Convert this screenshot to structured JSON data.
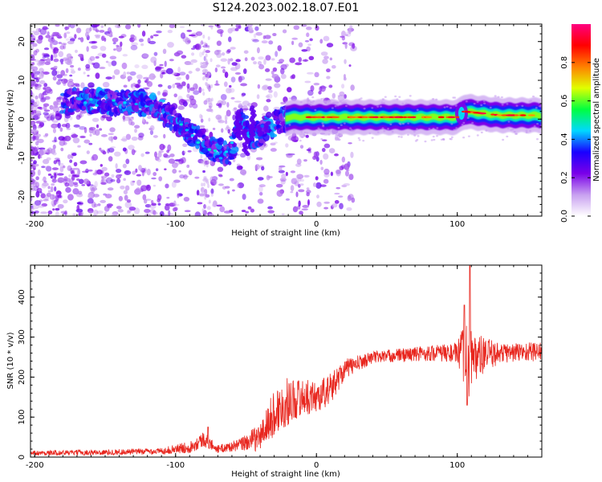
{
  "title": "S124.2023.002.18.07.E01",
  "chart_data": [
    {
      "type": "heatmap",
      "title": "S124.2023.002.18.07.E01",
      "xlabel": "Height of straight line (km)",
      "ylabel": "Frequency (Hz)",
      "xlim": [
        -203,
        160
      ],
      "ylim": [
        -25,
        24.5
      ],
      "x_ticks": [
        -200,
        -100,
        0,
        100
      ],
      "x_tick_labels": [
        "-200",
        "-100",
        "0",
        "100"
      ],
      "y_ticks": [
        -20,
        -10,
        0,
        10,
        20
      ],
      "y_tick_labels": [
        "-20",
        "-10",
        "0",
        "10",
        "20"
      ],
      "colorbar": {
        "label": "Normalized spectral amplitude",
        "range": [
          0,
          1
        ],
        "ticks": [
          0.0,
          0.2,
          0.4,
          0.6,
          0.8
        ],
        "tick_labels": [
          "0.0",
          "0.2",
          "0.4",
          "0.6",
          "0.8"
        ],
        "colormap": [
          "#ffffff",
          "#c8a0f0",
          "#7a00e8",
          "#1a00ff",
          "#00d8ff",
          "#00ff40",
          "#e0ff00",
          "#ff8000",
          "#ff0000",
          "#ff0080"
        ]
      },
      "ridge": [
        {
          "x": -175,
          "f": 4.5
        },
        {
          "x": -150,
          "f": 4.5
        },
        {
          "x": -125,
          "f": 4.5
        },
        {
          "x": -110,
          "f": 2
        },
        {
          "x": -100,
          "f": -1
        },
        {
          "x": -90,
          "f": -4
        },
        {
          "x": -75,
          "f": -7
        },
        {
          "x": -62,
          "f": -10
        },
        {
          "x": -55,
          "f": 0
        },
        {
          "x": -45,
          "f": -5
        },
        {
          "x": -35,
          "f": -2
        },
        {
          "x": -20,
          "f": 0.5
        },
        {
          "x": 0,
          "f": 0.5
        },
        {
          "x": 50,
          "f": 0.5
        },
        {
          "x": 100,
          "f": 0.5
        },
        {
          "x": 105,
          "f": 2
        },
        {
          "x": 130,
          "f": 1
        },
        {
          "x": 160,
          "f": 1
        }
      ]
    },
    {
      "type": "line",
      "xlabel": "Height of straight line (km)",
      "ylabel": "SNR (10 * v/v)",
      "xlim": [
        -203,
        160
      ],
      "ylim": [
        0,
        480
      ],
      "x_ticks": [
        -200,
        -100,
        0,
        100
      ],
      "x_tick_labels": [
        "-200",
        "-100",
        "0",
        "100"
      ],
      "y_ticks": [
        0,
        100,
        200,
        300,
        400
      ],
      "y_tick_labels": [
        "0",
        "100",
        "200",
        "300",
        "400"
      ],
      "color": "#e8261e",
      "envelope": [
        {
          "x": -203,
          "base": 10,
          "amp": 6
        },
        {
          "x": -150,
          "base": 12,
          "amp": 7
        },
        {
          "x": -110,
          "base": 15,
          "amp": 8
        },
        {
          "x": -90,
          "base": 25,
          "amp": 15
        },
        {
          "x": -80,
          "base": 45,
          "amp": 20
        },
        {
          "x": -70,
          "base": 20,
          "amp": 10
        },
        {
          "x": -55,
          "base": 30,
          "amp": 15
        },
        {
          "x": -40,
          "base": 50,
          "amp": 35
        },
        {
          "x": -30,
          "base": 110,
          "amp": 60
        },
        {
          "x": -20,
          "base": 140,
          "amp": 60
        },
        {
          "x": -10,
          "base": 150,
          "amp": 45
        },
        {
          "x": 0,
          "base": 150,
          "amp": 40
        },
        {
          "x": 10,
          "base": 170,
          "amp": 40
        },
        {
          "x": 20,
          "base": 220,
          "amp": 25
        },
        {
          "x": 40,
          "base": 250,
          "amp": 15
        },
        {
          "x": 80,
          "base": 260,
          "amp": 20
        },
        {
          "x": 100,
          "base": 260,
          "amp": 25
        },
        {
          "x": 108,
          "base": 250,
          "amp": 120
        },
        {
          "x": 112,
          "base": 250,
          "amp": 60
        },
        {
          "x": 130,
          "base": 260,
          "amp": 25
        },
        {
          "x": 160,
          "base": 265,
          "amp": 25
        }
      ],
      "peaks": [
        {
          "x": 109,
          "y": 478
        },
        {
          "x": 107,
          "y": 130
        },
        {
          "x": 105,
          "y": 380
        },
        {
          "x": -77,
          "y": 75
        }
      ]
    }
  ]
}
